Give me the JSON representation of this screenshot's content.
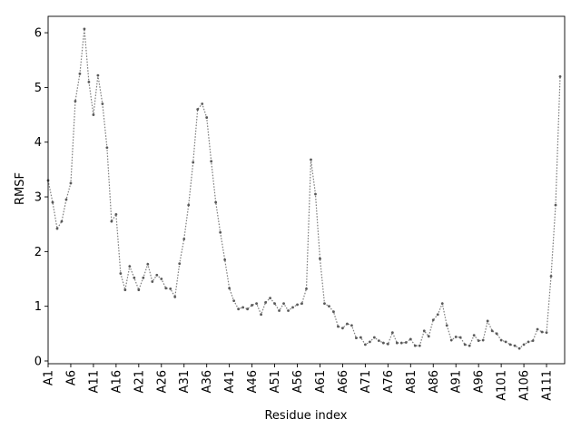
{
  "chart_data": {
    "type": "line",
    "title": "",
    "xlabel": "Residue index",
    "ylabel": "RMSF",
    "ylim": [
      -0.05,
      6.3
    ],
    "xlim": [
      0,
      114
    ],
    "grid": false,
    "legend": "none",
    "colors": {
      "line": "#7f7f7f",
      "marker": "#595959",
      "axis": "#000000",
      "background": "#ffffff"
    },
    "x_tick_labels": [
      "A1",
      "A6",
      "A11",
      "A16",
      "A21",
      "A26",
      "A31",
      "A36",
      "A41",
      "A46",
      "A51",
      "A56",
      "A61",
      "A66",
      "A71",
      "A76",
      "A81",
      "A86",
      "A91",
      "A96",
      "A101",
      "A106",
      "A111"
    ],
    "x_tick_indices": [
      0,
      5,
      10,
      15,
      20,
      25,
      30,
      35,
      40,
      45,
      50,
      55,
      60,
      65,
      70,
      75,
      80,
      85,
      90,
      95,
      100,
      105,
      110
    ],
    "y_ticks": [
      0,
      1,
      2,
      3,
      4,
      5,
      6
    ],
    "series": [
      {
        "values": [
          3.3,
          2.9,
          2.42,
          2.55,
          2.95,
          3.25,
          4.75,
          5.25,
          6.07,
          5.1,
          4.5,
          5.22,
          4.7,
          3.9,
          2.55,
          2.68,
          1.6,
          1.3,
          1.73,
          1.52,
          1.3,
          1.52,
          1.77,
          1.45,
          1.57,
          1.5,
          1.33,
          1.32,
          1.17,
          1.78,
          2.23,
          2.85,
          3.63,
          4.6,
          4.7,
          4.45,
          3.65,
          2.9,
          2.35,
          1.85,
          1.33,
          1.1,
          0.95,
          0.98,
          0.95,
          1.02,
          1.05,
          0.85,
          1.07,
          1.15,
          1.05,
          0.92,
          1.05,
          0.92,
          0.98,
          1.03,
          1.05,
          1.32,
          3.68,
          3.05,
          1.87,
          1.05,
          1.0,
          0.9,
          0.63,
          0.6,
          0.68,
          0.65,
          0.42,
          0.43,
          0.3,
          0.35,
          0.43,
          0.37,
          0.33,
          0.31,
          0.52,
          0.33,
          0.33,
          0.34,
          0.4,
          0.28,
          0.28,
          0.55,
          0.45,
          0.75,
          0.85,
          1.05,
          0.65,
          0.38,
          0.44,
          0.43,
          0.3,
          0.28,
          0.47,
          0.37,
          0.38,
          0.73,
          0.55,
          0.5,
          0.38,
          0.35,
          0.3,
          0.28,
          0.23,
          0.3,
          0.35,
          0.37,
          0.58,
          0.53,
          0.52,
          1.55,
          2.85,
          5.2
        ]
      }
    ]
  }
}
